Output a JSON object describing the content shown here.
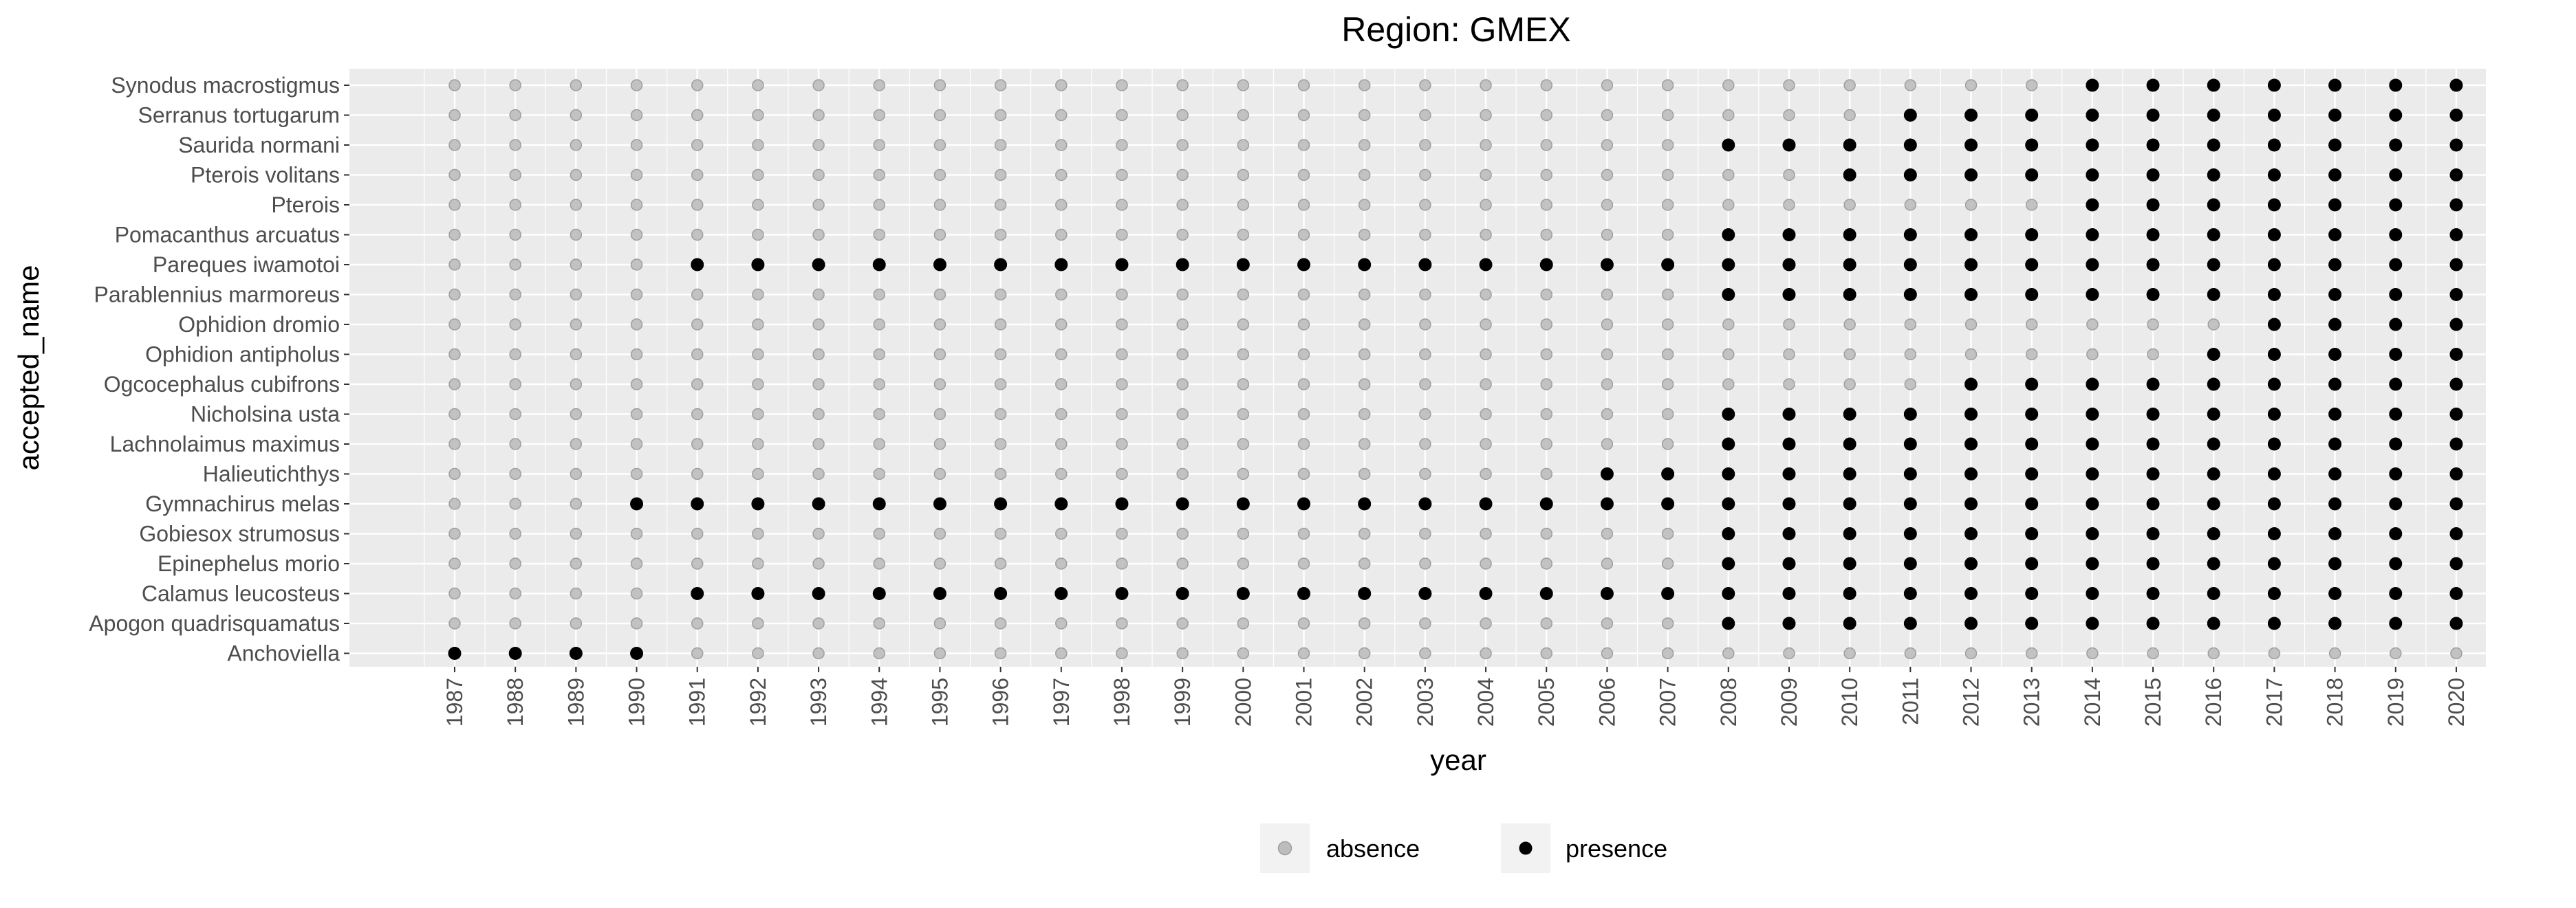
{
  "chart_data": {
    "type": "scatter",
    "title": "Region: GMEX",
    "xlabel": "year",
    "ylabel": "accepted_name",
    "x": [
      1987,
      1988,
      1989,
      1990,
      1991,
      1992,
      1993,
      1994,
      1995,
      1996,
      1997,
      1998,
      1999,
      2000,
      2001,
      2002,
      2003,
      2004,
      2005,
      2006,
      2007,
      2008,
      2009,
      2010,
      2011,
      2012,
      2013,
      2014,
      2015,
      2016,
      2017,
      2018,
      2019,
      2020
    ],
    "categories": [
      "Synodus macrostigmus",
      "Serranus tortugarum",
      "Saurida normani",
      "Pterois volitans",
      "Pterois",
      "Pomacanthus arcuatus",
      "Pareques iwamotoi",
      "Parablennius marmoreus",
      "Ophidion dromio",
      "Ophidion antipholus",
      "Ogcocephalus cubifrons",
      "Nicholsina usta",
      "Lachnolaimus maximus",
      "Halieutichthys",
      "Gymnachirus melas",
      "Gobiesox strumosus",
      "Epinephelus morio",
      "Calamus leucosteus",
      "Apogon quadrisquamatus",
      "Anchoviella"
    ],
    "first_presence_year": [
      2014,
      2011,
      2008,
      2010,
      2014,
      2008,
      1991,
      2008,
      2017,
      2016,
      2012,
      2008,
      2008,
      2006,
      1990,
      2008,
      2008,
      1991,
      2008,
      1987
    ],
    "last_presence_year": [
      2020,
      2020,
      2020,
      2020,
      2020,
      2020,
      2020,
      2020,
      2020,
      2020,
      2020,
      2020,
      2020,
      2020,
      2020,
      2020,
      2020,
      2020,
      2020,
      1990
    ],
    "legend": {
      "position": "bottom",
      "entries": [
        {
          "label": "absence",
          "color": "#bdbdbd"
        },
        {
          "label": "presence",
          "color": "#000000"
        }
      ]
    },
    "grid": true,
    "colors": {
      "panel": "#ebebeb",
      "grid": "#ffffff",
      "absence": "#bdbdbd",
      "absence_stroke": "#9e9e9e",
      "presence": "#000000"
    }
  }
}
